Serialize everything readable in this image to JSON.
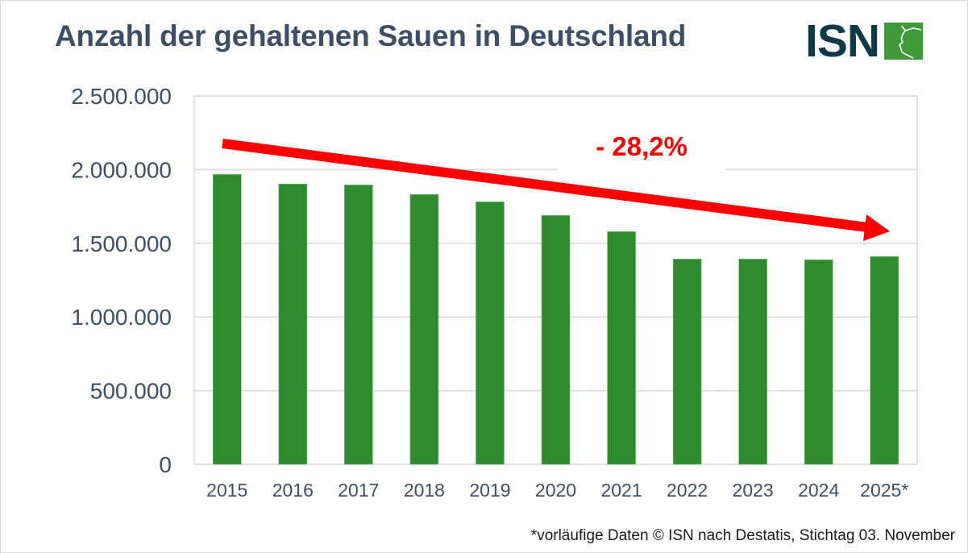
{
  "header": {
    "title": "Anzahl der gehaltenen Sauen in Deutschland",
    "logo_text": "ISN"
  },
  "footnote": "*vorläufige Daten © ISN nach Destatis, Stichtag 03. November",
  "colors": {
    "bar": "#2e8b2e",
    "title": "#3d4f66",
    "arrow": "#ff0000",
    "logo_dark": "#0e3a48",
    "logo_green": "#3f9a3a"
  },
  "chart_data": {
    "type": "bar",
    "title": "Anzahl der gehaltenen Sauen in Deutschland",
    "xlabel": "",
    "ylabel": "",
    "categories": [
      "2015",
      "2016",
      "2017",
      "2018",
      "2019",
      "2020",
      "2021",
      "2022",
      "2023",
      "2024",
      "2025*"
    ],
    "values": [
      1967000,
      1902000,
      1896000,
      1831000,
      1781000,
      1689000,
      1579000,
      1393000,
      1393000,
      1388000,
      1410000
    ],
    "ylim": [
      0,
      2500000
    ],
    "yticks": [
      0,
      500000,
      1000000,
      1500000,
      2000000,
      2500000
    ],
    "ytick_labels": [
      "0",
      "500.000",
      "1.000.000",
      "1.500.000",
      "2.000.000",
      "2.500.000"
    ],
    "grid": true,
    "legend": "none",
    "annotations": [
      {
        "type": "arrow",
        "text": "- 28,2%",
        "from_category": "2015",
        "to_category": "2025*",
        "direction": "down"
      }
    ]
  }
}
